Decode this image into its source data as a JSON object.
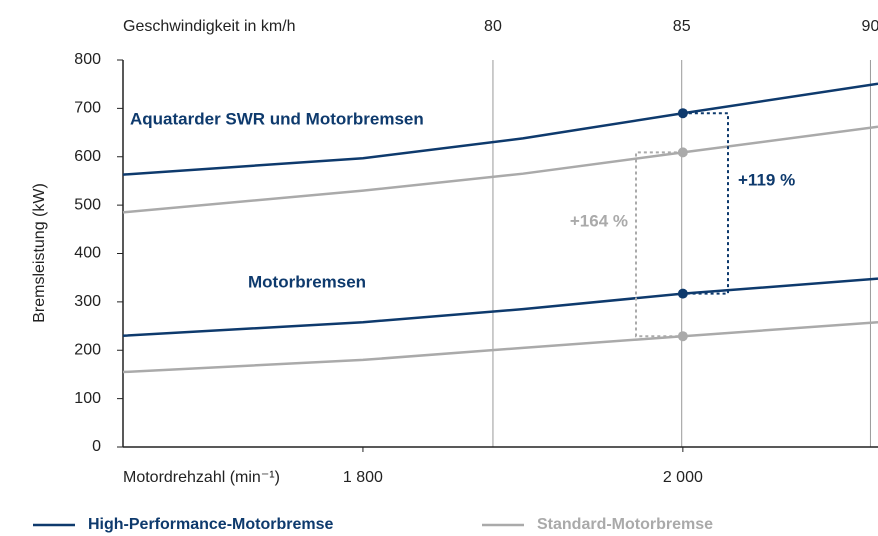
{
  "chart_data": {
    "type": "line",
    "title_y": "Bremsleistung (kW)",
    "title_x": "Motordrehzahl (min⁻¹)",
    "title_x2": "Geschwindigkeit in km/h",
    "x": [
      1650,
      1800,
      1900,
      2000,
      2122
    ],
    "xlim": [
      1650,
      2122
    ],
    "xticks": [
      {
        "value": 1800,
        "label": "1 800"
      },
      {
        "value": 2000,
        "label": "2 000"
      }
    ],
    "x2lim": [
      70.2,
      90.2
    ],
    "x2ticks": [
      80,
      85,
      90
    ],
    "ylim": [
      0,
      800
    ],
    "yticks": [
      0,
      100,
      200,
      300,
      400,
      500,
      600,
      700,
      800
    ],
    "series": [
      {
        "name": "High-Performance-Motorbremse",
        "color": "#0e3a6d",
        "values": [
          563,
          597,
          638,
          690,
          751
        ],
        "values_2": [
          230,
          258,
          285,
          317,
          348
        ]
      },
      {
        "name": "Standard-Motorbremse",
        "color": "#aaaaaa",
        "values": [
          485,
          530,
          565,
          609,
          662
        ],
        "values_2": [
          155,
          180,
          205,
          229,
          258
        ]
      }
    ],
    "annotations": [
      "Aquatarder SWR und Motorbremsen",
      "Motorbremsen",
      "+164 %",
      "+119 %"
    ]
  }
}
